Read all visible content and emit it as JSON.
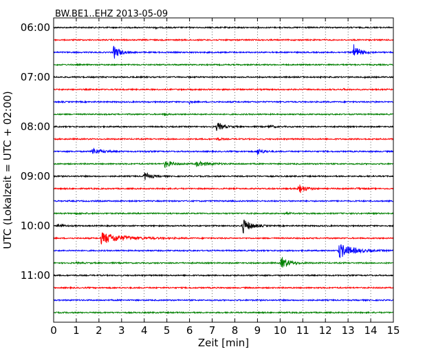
{
  "chart_data": {
    "type": "line",
    "title": "BW.BE1..EHZ 2013-05-09",
    "xlabel": "Zeit  [min]",
    "ylabel": "UTC (Lokalzeit = UTC + 02:00)",
    "xlim": [
      0,
      15
    ],
    "x_ticks": [
      0,
      1,
      2,
      3,
      4,
      5,
      6,
      7,
      8,
      9,
      10,
      11,
      12,
      13,
      14,
      15
    ],
    "y_ticks": [
      "06:00",
      "07:00",
      "08:00",
      "09:00",
      "10:00",
      "11:00"
    ],
    "grid": "vertical dotted",
    "row_interval_min": 15,
    "row_colors": [
      "#000000",
      "#ff0000",
      "#0000ff",
      "#008000"
    ],
    "rows": [
      {
        "time": "06:00",
        "color": "#000000",
        "events": [
          {
            "t": 4.5,
            "amp": 0.1,
            "dur": 0.2
          }
        ]
      },
      {
        "time": "06:15",
        "color": "#ff0000",
        "events": []
      },
      {
        "time": "06:30",
        "color": "#0000ff",
        "events": [
          {
            "t": 2.65,
            "amp": 0.9,
            "dur": 0.35
          },
          {
            "t": 13.25,
            "amp": 1.0,
            "dur": 0.35
          }
        ]
      },
      {
        "time": "06:45",
        "color": "#008000",
        "events": []
      },
      {
        "time": "07:00",
        "color": "#000000",
        "events": [
          {
            "t": 13.7,
            "amp": 0.1,
            "dur": 0.15
          }
        ]
      },
      {
        "time": "07:15",
        "color": "#ff0000",
        "events": [
          {
            "t": 12.8,
            "amp": 0.08,
            "dur": 0.2
          }
        ]
      },
      {
        "time": "07:30",
        "color": "#0000ff",
        "events": [
          {
            "t": 6.0,
            "amp": 0.25,
            "dur": 0.1
          },
          {
            "t": 14.2,
            "amp": 0.08,
            "dur": 0.15
          }
        ]
      },
      {
        "time": "07:45",
        "color": "#008000",
        "events": [
          {
            "t": 4.9,
            "amp": 0.2,
            "dur": 0.15
          }
        ]
      },
      {
        "time": "08:00",
        "color": "#000000",
        "events": [
          {
            "t": 7.2,
            "amp": 0.6,
            "dur": 0.35
          },
          {
            "t": 9.5,
            "amp": 0.2,
            "dur": 0.3
          }
        ]
      },
      {
        "time": "08:15",
        "color": "#ff0000",
        "events": [
          {
            "t": 7.25,
            "amp": 0.25,
            "dur": 0.15
          }
        ]
      },
      {
        "time": "08:30",
        "color": "#0000ff",
        "events": [
          {
            "t": 1.7,
            "amp": 0.45,
            "dur": 0.5
          },
          {
            "t": 9.0,
            "amp": 0.5,
            "dur": 0.3
          },
          {
            "t": 4.0,
            "amp": 0.08,
            "dur": 0.2
          }
        ]
      },
      {
        "time": "08:45",
        "color": "#008000",
        "events": [
          {
            "t": 4.9,
            "amp": 0.45,
            "dur": 0.5
          },
          {
            "t": 6.3,
            "amp": 0.3,
            "dur": 0.8
          }
        ]
      },
      {
        "time": "09:00",
        "color": "#000000",
        "events": [
          {
            "t": 4.0,
            "amp": 0.55,
            "dur": 0.35
          }
        ]
      },
      {
        "time": "09:15",
        "color": "#ff0000",
        "events": [
          {
            "t": 10.8,
            "amp": 0.75,
            "dur": 0.35
          },
          {
            "t": 13.4,
            "amp": 0.12,
            "dur": 0.25
          }
        ]
      },
      {
        "time": "09:30",
        "color": "#0000ff",
        "events": []
      },
      {
        "time": "09:45",
        "color": "#008000",
        "events": [
          {
            "t": 1.0,
            "amp": 0.08,
            "dur": 0.4
          },
          {
            "t": 10.2,
            "amp": 0.08,
            "dur": 0.4
          }
        ]
      },
      {
        "time": "10:00",
        "color": "#000000",
        "events": [
          {
            "t": 0.2,
            "amp": 0.25,
            "dur": 0.3
          },
          {
            "t": 8.35,
            "amp": 1.0,
            "dur": 0.45
          }
        ]
      },
      {
        "time": "10:15",
        "color": "#ff0000",
        "events": [
          {
            "t": 2.1,
            "amp": 0.75,
            "dur": 1.3
          }
        ]
      },
      {
        "time": "10:30",
        "color": "#0000ff",
        "events": [
          {
            "t": 12.6,
            "amp": 1.0,
            "dur": 0.8
          }
        ]
      },
      {
        "time": "10:45",
        "color": "#008000",
        "events": [
          {
            "t": 1.0,
            "amp": 0.08,
            "dur": 0.3
          },
          {
            "t": 10.05,
            "amp": 0.85,
            "dur": 0.45
          }
        ]
      },
      {
        "time": "11:00",
        "color": "#000000",
        "events": []
      },
      {
        "time": "11:15",
        "color": "#ff0000",
        "events": []
      },
      {
        "time": "11:30",
        "color": "#0000ff",
        "events": []
      },
      {
        "time": "11:45",
        "color": "#008000",
        "events": []
      }
    ]
  }
}
